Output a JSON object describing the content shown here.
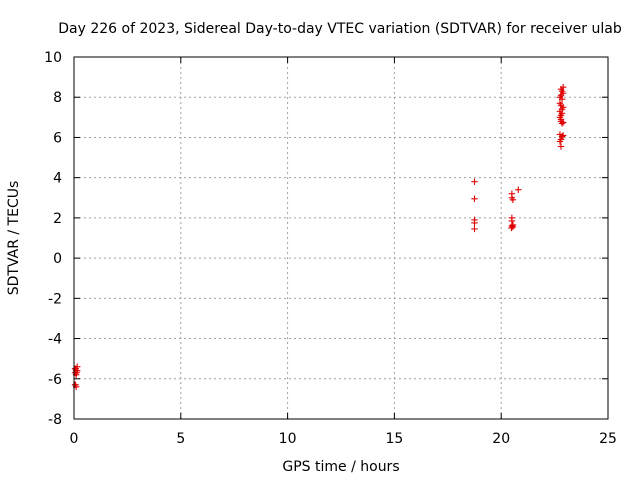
{
  "chart_data": {
    "type": "scatter",
    "title": "Day 226 of 2023, Sidereal Day-to-day VTEC variation (SDTVAR) for receiver ulab",
    "xlabel": "GPS time / hours",
    "ylabel": "SDTVAR / TECUs",
    "xlim": [
      0,
      25
    ],
    "ylim": [
      -8,
      10
    ],
    "xticks": [
      0,
      5,
      10,
      15,
      20,
      25
    ],
    "yticks": [
      -8,
      -6,
      -4,
      -2,
      0,
      2,
      4,
      6,
      8,
      10
    ],
    "grid": true,
    "marker": "+",
    "color": "#e00000",
    "series": [
      {
        "name": "SDTVAR",
        "points": [
          [
            0.05,
            -5.5
          ],
          [
            0.1,
            -5.6
          ],
          [
            0.15,
            -5.4
          ],
          [
            0.05,
            -5.7
          ],
          [
            0.1,
            -5.8
          ],
          [
            0.15,
            -5.6
          ],
          [
            0.08,
            -5.5
          ],
          [
            0.12,
            -5.7
          ],
          [
            0.05,
            -6.3
          ],
          [
            0.1,
            -6.4
          ],
          [
            0.07,
            -6.3
          ],
          [
            18.75,
            3.8
          ],
          [
            18.75,
            2.95
          ],
          [
            18.75,
            1.9
          ],
          [
            18.75,
            1.75
          ],
          [
            18.75,
            1.45
          ],
          [
            20.5,
            3.2
          ],
          [
            20.5,
            3.0
          ],
          [
            20.55,
            2.9
          ],
          [
            20.8,
            3.4
          ],
          [
            20.5,
            2.0
          ],
          [
            20.5,
            1.85
          ],
          [
            20.5,
            1.6
          ],
          [
            20.55,
            1.55
          ],
          [
            20.48,
            1.5
          ],
          [
            20.55,
            1.65
          ],
          [
            22.8,
            8.4
          ],
          [
            22.85,
            8.3
          ],
          [
            22.9,
            8.5
          ],
          [
            22.8,
            8.1
          ],
          [
            22.85,
            7.9
          ],
          [
            22.75,
            7.7
          ],
          [
            22.8,
            7.6
          ],
          [
            22.9,
            7.5
          ],
          [
            22.75,
            7.3
          ],
          [
            22.85,
            7.2
          ],
          [
            22.8,
            7.1
          ],
          [
            22.75,
            7.0
          ],
          [
            22.8,
            6.8
          ],
          [
            22.9,
            6.75
          ],
          [
            22.85,
            6.7
          ],
          [
            22.75,
            6.15
          ],
          [
            22.85,
            6.05
          ],
          [
            22.9,
            6.1
          ],
          [
            22.8,
            5.9
          ],
          [
            22.75,
            5.8
          ],
          [
            22.8,
            5.55
          ],
          [
            22.9,
            8.2
          ],
          [
            22.75,
            8.0
          ],
          [
            22.85,
            7.4
          ],
          [
            22.8,
            6.9
          ]
        ]
      }
    ]
  }
}
